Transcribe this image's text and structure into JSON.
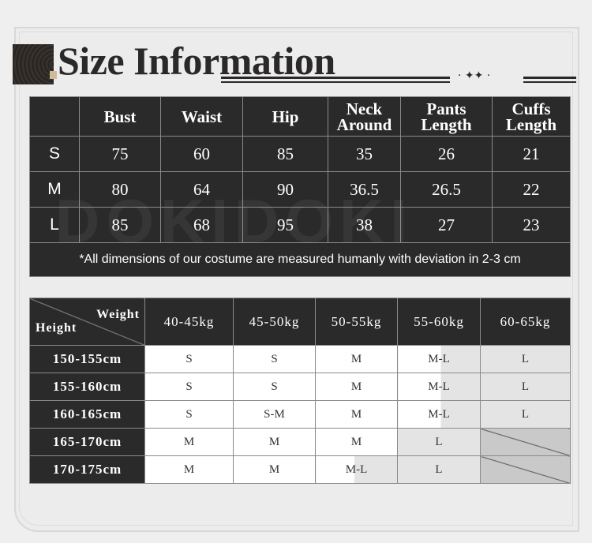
{
  "title": "Size Information",
  "watermark": "DOKIDOKI",
  "measurements": {
    "headers": [
      "",
      "Bust",
      "Waist",
      "Hip",
      "Neck Around",
      "Pants Length",
      "Cuffs Length"
    ],
    "rows": [
      {
        "size": "S",
        "values": [
          "75",
          "60",
          "85",
          "35",
          "26",
          "21"
        ]
      },
      {
        "size": "M",
        "values": [
          "80",
          "64",
          "90",
          "36.5",
          "26.5",
          "22"
        ]
      },
      {
        "size": "L",
        "values": [
          "85",
          "68",
          "95",
          "38",
          "27",
          "23"
        ]
      }
    ],
    "note": "*All dimensions of our costume are measured humanly with deviation in 2-3 cm"
  },
  "recommendation": {
    "corner_weight": "Weight",
    "corner_height": "Height",
    "weights": [
      "40-45kg",
      "45-50kg",
      "50-55kg",
      "55-60kg",
      "60-65kg"
    ],
    "rows": [
      {
        "height": "150-155cm",
        "sizes": [
          "S",
          "S",
          "M",
          "M-L",
          "L"
        ]
      },
      {
        "height": "155-160cm",
        "sizes": [
          "S",
          "S",
          "M",
          "M-L",
          "L"
        ]
      },
      {
        "height": "160-165cm",
        "sizes": [
          "S",
          "S-M",
          "M",
          "M-L",
          "L"
        ]
      },
      {
        "height": "165-170cm",
        "sizes": [
          "M",
          "M",
          "M",
          "L",
          ""
        ]
      },
      {
        "height": "170-175cm",
        "sizes": [
          "M",
          "M",
          "M-L",
          "L",
          ""
        ]
      }
    ]
  },
  "colors": {
    "dark": "#2b2a2a",
    "gray_cell": "#e4e4e4",
    "na_cell": "#c9c9c9",
    "accent": "#cdbb99"
  }
}
